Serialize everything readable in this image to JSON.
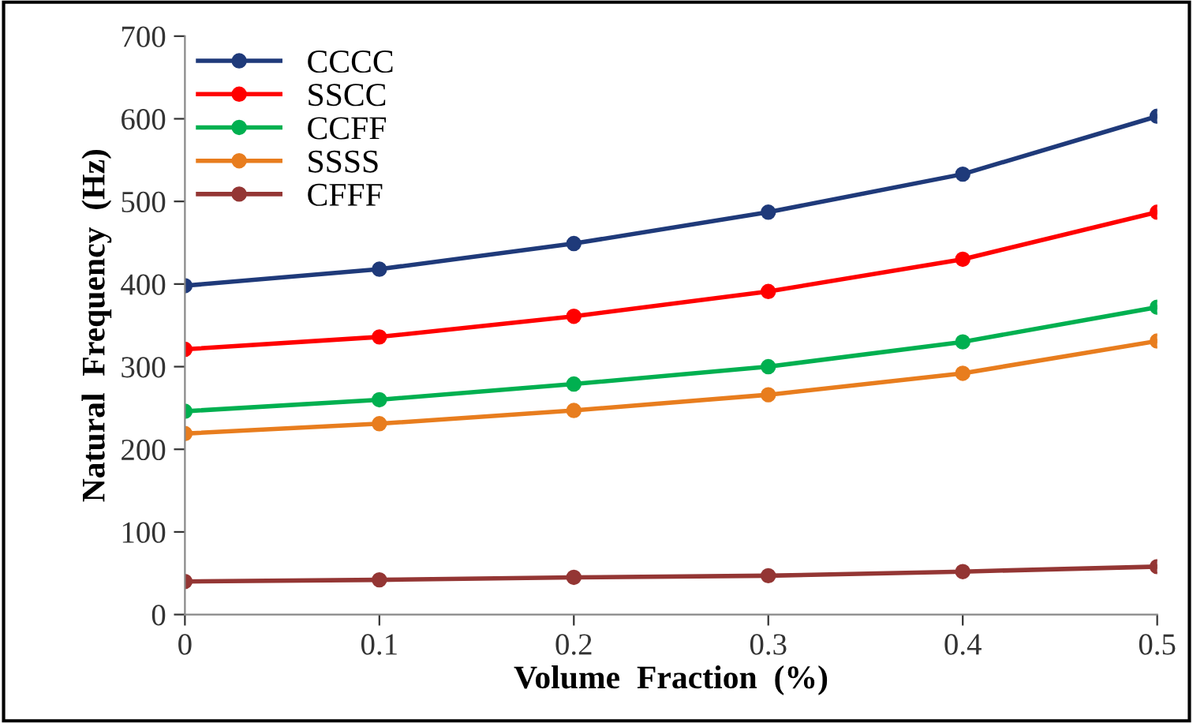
{
  "chart_data": {
    "type": "line",
    "xlabel": "Volume  Fraction  (%)",
    "ylabel": "Natural  Frequency  (Hz)",
    "x": [
      0,
      0.1,
      0.2,
      0.3,
      0.4,
      0.5
    ],
    "series": [
      {
        "name": "CCCC",
        "color": "#1f3a7a",
        "values": [
          398,
          418,
          449,
          487,
          533,
          603
        ]
      },
      {
        "name": "SSCC",
        "color": "#ff0000",
        "values": [
          321,
          336,
          361,
          391,
          430,
          487
        ]
      },
      {
        "name": "CCFF",
        "color": "#00b050",
        "values": [
          246,
          260,
          279,
          300,
          330,
          372
        ]
      },
      {
        "name": "SSSS",
        "color": "#e87d1e",
        "values": [
          219,
          231,
          247,
          266,
          292,
          331
        ]
      },
      {
        "name": "CFFF",
        "color": "#943634",
        "values": [
          40,
          42,
          45,
          47,
          52,
          58
        ]
      }
    ],
    "xlim": [
      0,
      0.5
    ],
    "ylim": [
      0,
      700
    ],
    "xticks": [
      0,
      0.1,
      0.2,
      0.3,
      0.4,
      0.5
    ],
    "yticks": [
      0,
      100,
      200,
      300,
      400,
      500,
      600,
      700
    ],
    "grid": false,
    "legend": "top left",
    "marker": "circle",
    "line_style": "solid"
  }
}
